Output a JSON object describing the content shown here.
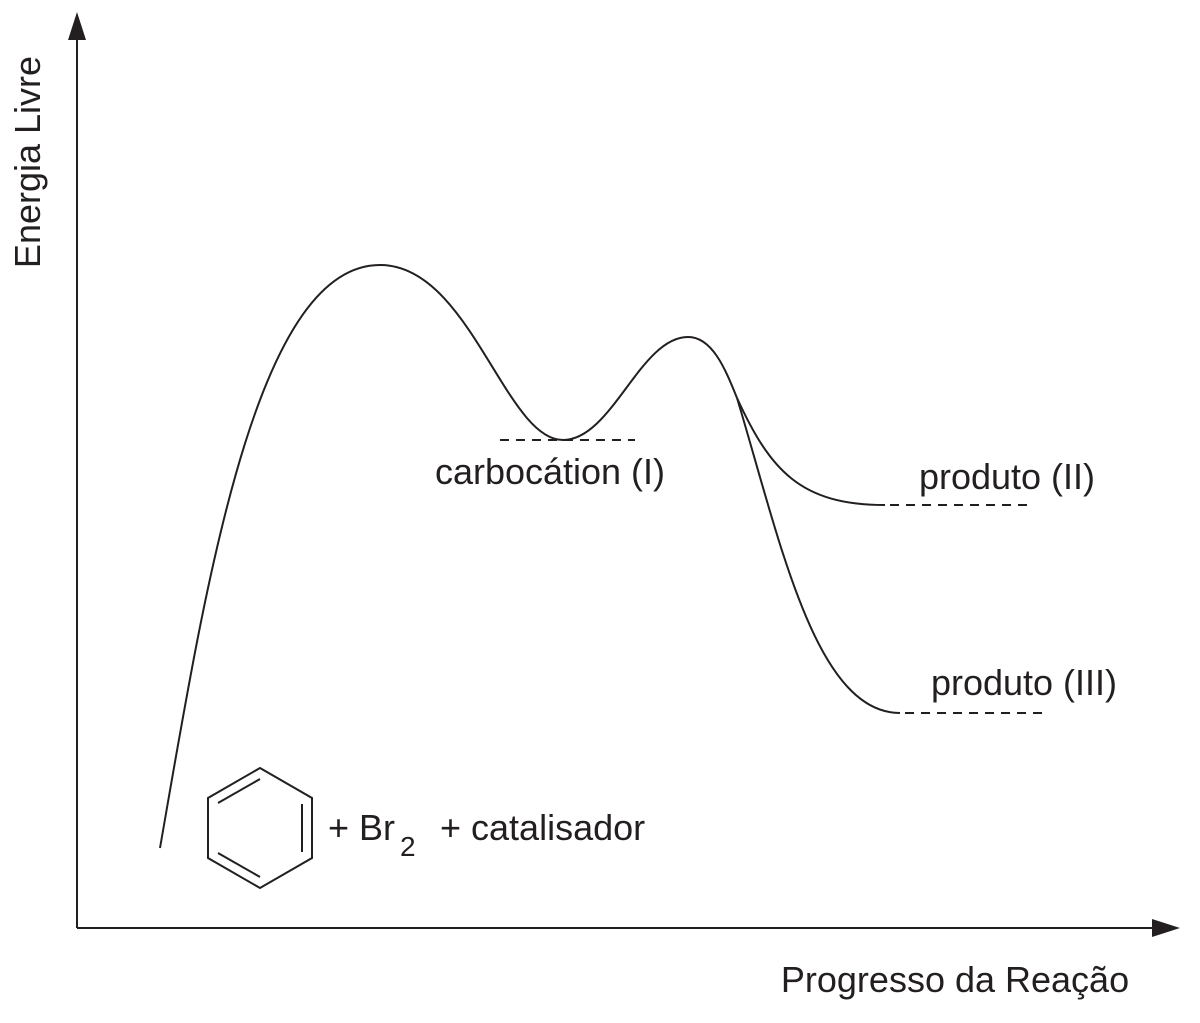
{
  "axes": {
    "y_label": "Energia Livre",
    "x_label": "Progresso da Reação"
  },
  "labels": {
    "intermediate": "carbocátion (I)",
    "product_1": "produto (II)",
    "product_2": "produto (III)"
  },
  "reactants": {
    "text_1": "+ Br",
    "subscript": "2",
    "text_2": "+ catalisador"
  }
}
